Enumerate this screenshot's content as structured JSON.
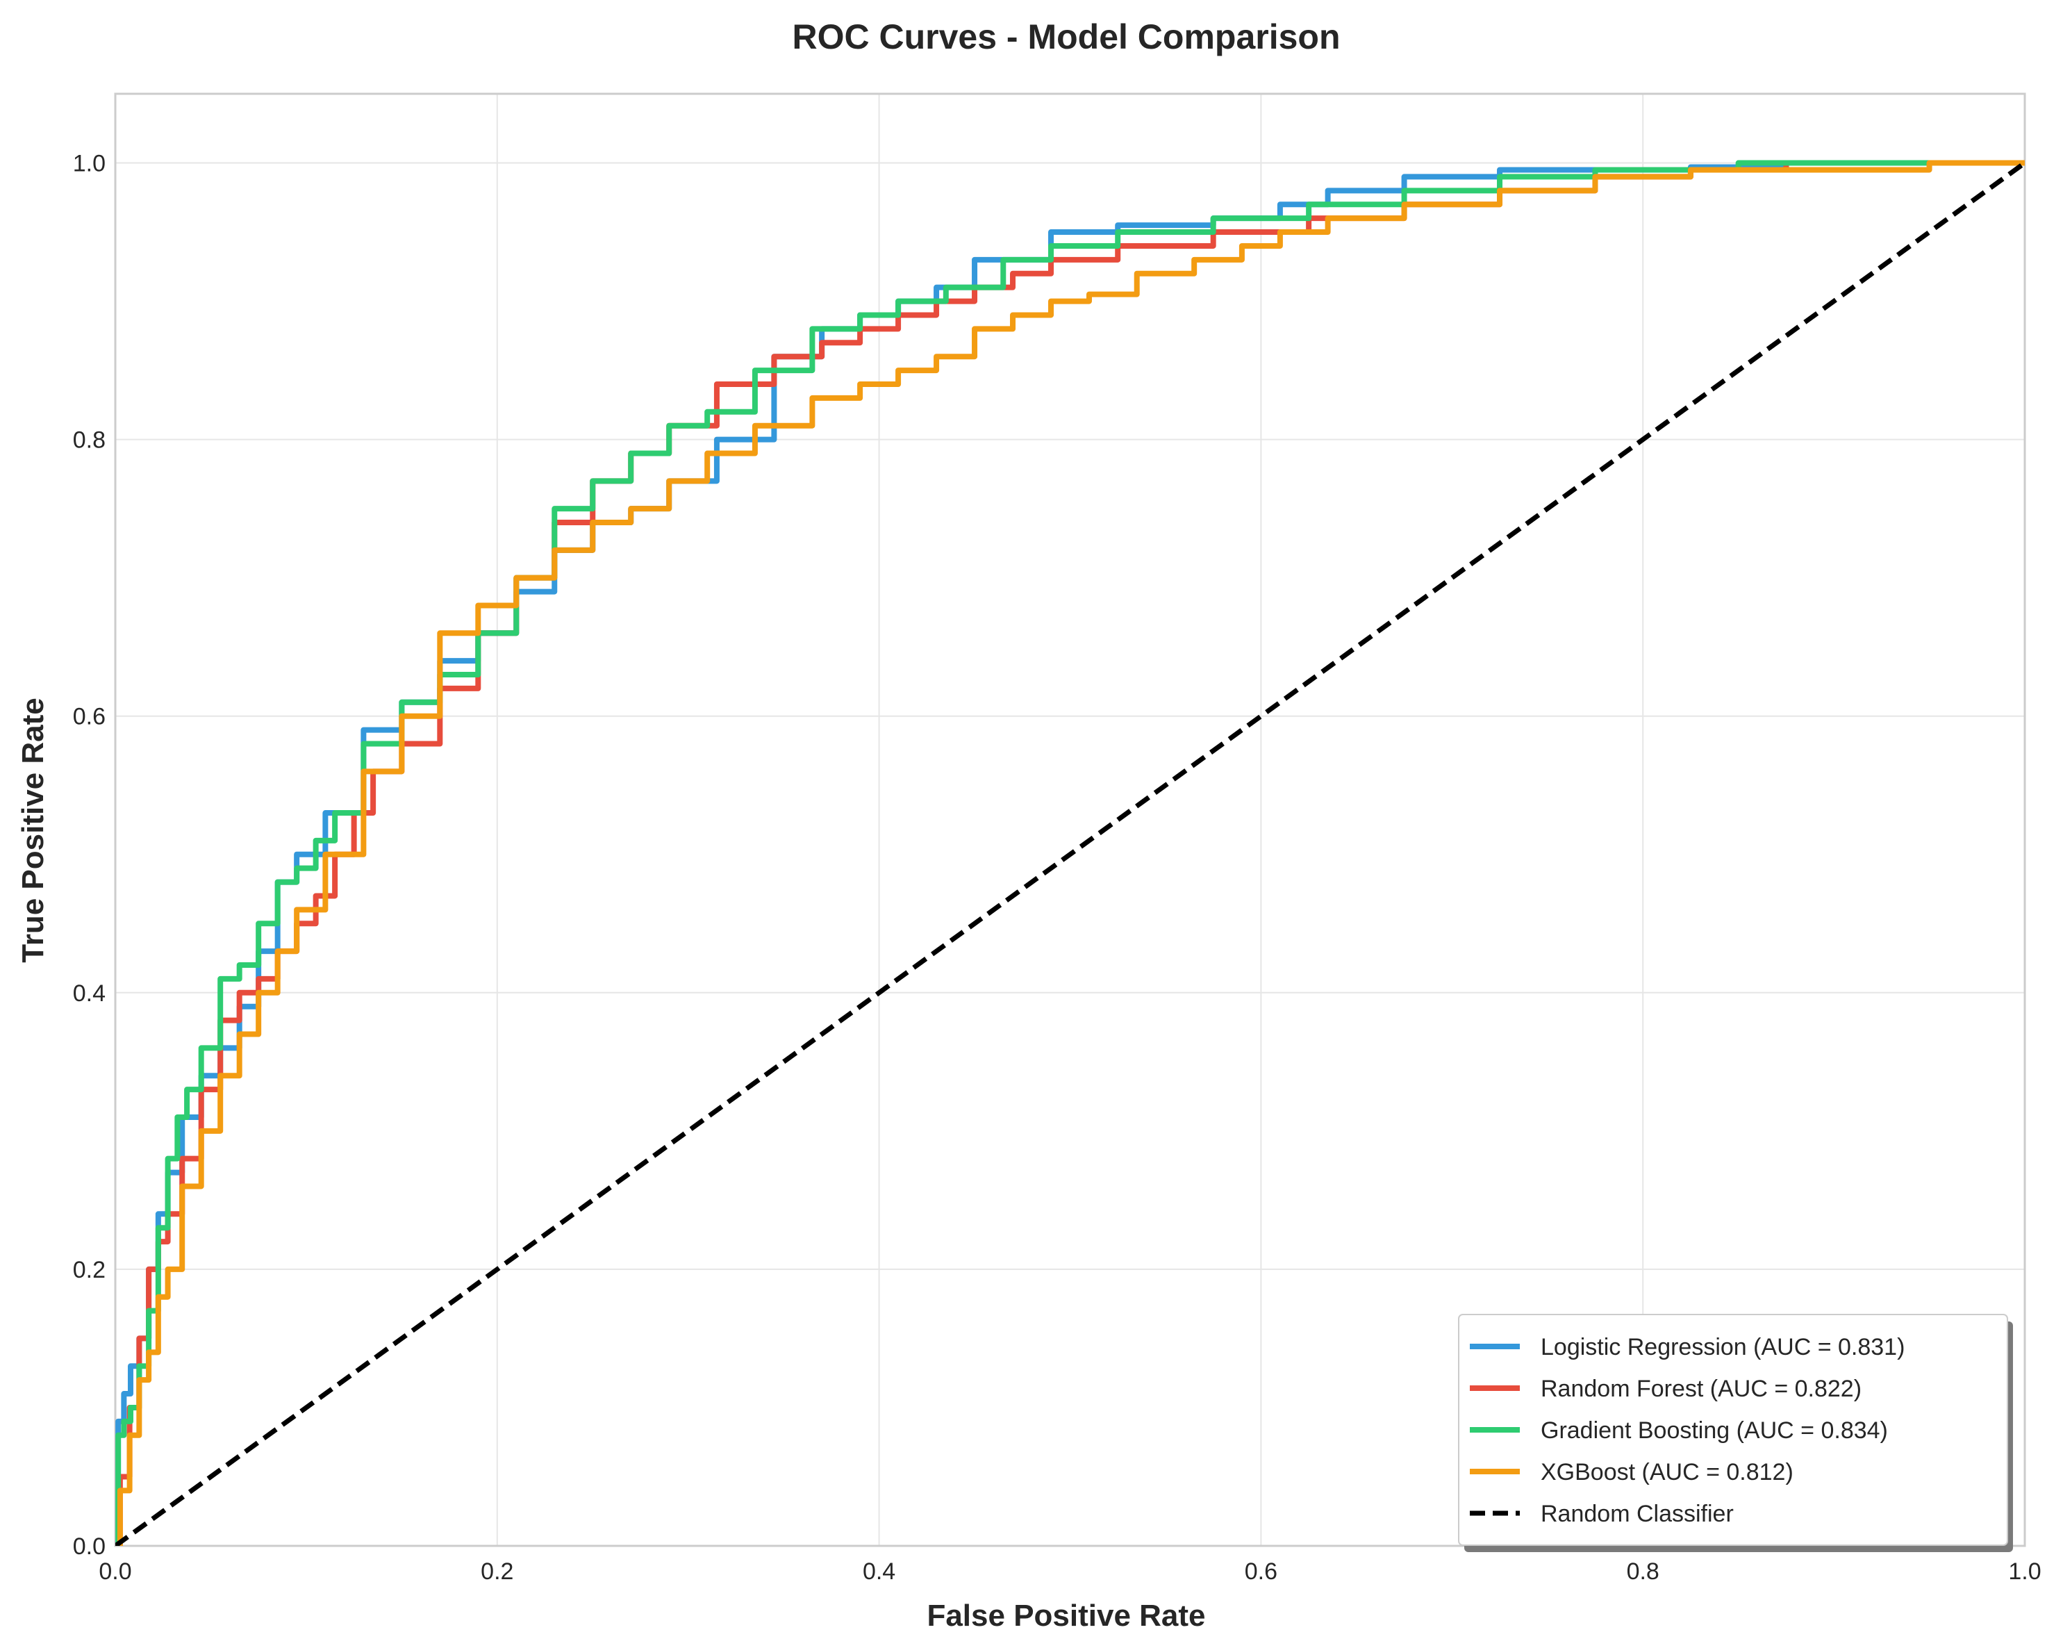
{
  "chart_data": {
    "type": "line",
    "title": "ROC Curves - Model Comparison",
    "xlabel": "False Positive Rate",
    "ylabel": "True Positive Rate",
    "xlim": [
      0.0,
      1.0
    ],
    "ylim": [
      0.0,
      1.05
    ],
    "xticks": [
      "0.0",
      "0.2",
      "0.4",
      "0.6",
      "0.8",
      "1.0"
    ],
    "yticks": [
      "0.0",
      "0.2",
      "0.4",
      "0.6",
      "0.8",
      "1.0"
    ],
    "grid": true,
    "legend_position": "lower-right",
    "series": [
      {
        "name": "Logistic Regression (AUC = 0.831)",
        "color": "#3498db",
        "x": [
          0,
          0.003,
          0.006,
          0.01,
          0.015,
          0.02,
          0.025,
          0.03,
          0.04,
          0.05,
          0.06,
          0.07,
          0.08,
          0.09,
          0.1,
          0.12,
          0.14,
          0.16,
          0.18,
          0.2,
          0.22,
          0.24,
          0.26,
          0.28,
          0.3,
          0.33,
          0.36,
          0.38,
          0.4,
          0.42,
          0.44,
          0.46,
          0.48,
          0.5,
          0.55,
          0.6,
          0.62,
          0.65,
          0.7,
          0.75,
          0.8,
          0.85,
          0.9,
          0.95,
          1.0
        ],
        "y": [
          0,
          0.09,
          0.11,
          0.13,
          0.15,
          0.2,
          0.24,
          0.27,
          0.31,
          0.34,
          0.36,
          0.39,
          0.43,
          0.48,
          0.5,
          0.53,
          0.59,
          0.61,
          0.64,
          0.66,
          0.69,
          0.72,
          0.74,
          0.75,
          0.77,
          0.8,
          0.86,
          0.88,
          0.89,
          0.9,
          0.91,
          0.93,
          0.93,
          0.95,
          0.955,
          0.96,
          0.97,
          0.98,
          0.99,
          0.995,
          0.995,
          0.997,
          1.0,
          1.0,
          1.0
        ]
      },
      {
        "name": "Random Forest (AUC = 0.822)",
        "color": "#e74c3c",
        "x": [
          0,
          0.005,
          0.01,
          0.015,
          0.02,
          0.025,
          0.03,
          0.04,
          0.05,
          0.06,
          0.07,
          0.08,
          0.09,
          0.1,
          0.11,
          0.12,
          0.13,
          0.14,
          0.16,
          0.18,
          0.2,
          0.22,
          0.24,
          0.26,
          0.28,
          0.3,
          0.33,
          0.36,
          0.38,
          0.4,
          0.42,
          0.44,
          0.46,
          0.48,
          0.5,
          0.55,
          0.6,
          0.65,
          0.7,
          0.75,
          0.8,
          0.85,
          0.9,
          1.0
        ],
        "y": [
          0,
          0.05,
          0.1,
          0.15,
          0.2,
          0.22,
          0.24,
          0.28,
          0.33,
          0.38,
          0.4,
          0.41,
          0.43,
          0.45,
          0.47,
          0.5,
          0.53,
          0.56,
          0.58,
          0.62,
          0.66,
          0.7,
          0.74,
          0.77,
          0.79,
          0.81,
          0.84,
          0.86,
          0.87,
          0.88,
          0.89,
          0.9,
          0.91,
          0.92,
          0.93,
          0.94,
          0.95,
          0.96,
          0.97,
          0.98,
          0.99,
          0.995,
          1.0,
          1.0
        ]
      },
      {
        "name": "Gradient Boosting (AUC = 0.834)",
        "color": "#2ecc71",
        "x": [
          0,
          0.003,
          0.006,
          0.01,
          0.015,
          0.02,
          0.025,
          0.03,
          0.035,
          0.04,
          0.05,
          0.06,
          0.07,
          0.08,
          0.09,
          0.1,
          0.11,
          0.12,
          0.14,
          0.16,
          0.18,
          0.2,
          0.22,
          0.24,
          0.26,
          0.28,
          0.3,
          0.32,
          0.35,
          0.38,
          0.4,
          0.42,
          0.45,
          0.48,
          0.5,
          0.55,
          0.6,
          0.65,
          0.7,
          0.75,
          0.8,
          0.9,
          1.0
        ],
        "y": [
          0,
          0.08,
          0.09,
          0.1,
          0.13,
          0.17,
          0.23,
          0.28,
          0.31,
          0.33,
          0.36,
          0.41,
          0.42,
          0.45,
          0.48,
          0.49,
          0.51,
          0.53,
          0.58,
          0.61,
          0.63,
          0.66,
          0.7,
          0.75,
          0.77,
          0.79,
          0.81,
          0.82,
          0.85,
          0.88,
          0.89,
          0.9,
          0.91,
          0.93,
          0.94,
          0.95,
          0.96,
          0.97,
          0.98,
          0.99,
          0.995,
          1.0,
          1.0
        ]
      },
      {
        "name": "XGBoost (AUC = 0.812)",
        "color": "#f39c12",
        "x": [
          0,
          0.005,
          0.01,
          0.015,
          0.02,
          0.025,
          0.03,
          0.04,
          0.05,
          0.06,
          0.07,
          0.08,
          0.09,
          0.1,
          0.12,
          0.14,
          0.16,
          0.18,
          0.2,
          0.22,
          0.24,
          0.26,
          0.28,
          0.3,
          0.32,
          0.35,
          0.38,
          0.4,
          0.42,
          0.44,
          0.46,
          0.48,
          0.5,
          0.52,
          0.55,
          0.58,
          0.6,
          0.62,
          0.65,
          0.7,
          0.75,
          0.8,
          0.85,
          0.9,
          1.0
        ],
        "y": [
          0,
          0.04,
          0.08,
          0.12,
          0.14,
          0.18,
          0.2,
          0.26,
          0.3,
          0.34,
          0.37,
          0.4,
          0.43,
          0.46,
          0.5,
          0.56,
          0.6,
          0.66,
          0.68,
          0.7,
          0.72,
          0.74,
          0.75,
          0.77,
          0.79,
          0.81,
          0.83,
          0.84,
          0.85,
          0.86,
          0.88,
          0.89,
          0.9,
          0.905,
          0.92,
          0.93,
          0.94,
          0.95,
          0.96,
          0.97,
          0.98,
          0.99,
          0.995,
          0.995,
          1.0
        ]
      },
      {
        "name": "Random Classifier",
        "color": "#000000",
        "dashed": true,
        "x": [
          0,
          1.0
        ],
        "y": [
          0,
          1.0
        ]
      }
    ]
  }
}
